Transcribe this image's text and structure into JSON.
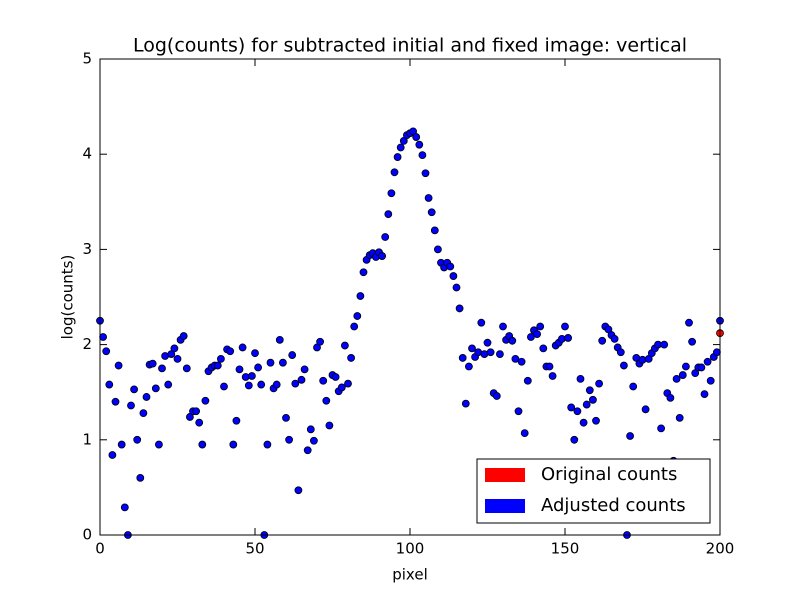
{
  "chart_data": {
    "type": "scatter",
    "title": "Log(counts) for subtracted initial and fixed image: vertical",
    "x_label": "pixel",
    "y_label": "log(counts)",
    "xlim": [
      0,
      200
    ],
    "xticks": [
      0,
      50,
      100,
      150,
      200
    ],
    "ylim": [
      0,
      5
    ],
    "yticks": [
      0,
      1,
      2,
      3,
      4,
      5
    ],
    "legend": "lower right",
    "series": [
      {
        "name": "Original counts",
        "color": "#ff0000",
        "x": [
          200
        ],
        "values": [
          2.12
        ]
      },
      {
        "name": "Adjusted counts",
        "color": "#0000ff",
        "x": [
          0,
          1,
          2,
          3,
          4,
          5,
          6,
          7,
          8,
          9,
          10,
          11,
          12,
          13,
          14,
          15,
          16,
          17,
          18,
          19,
          20,
          21,
          22,
          23,
          24,
          25,
          26,
          27,
          28,
          29,
          30,
          31,
          32,
          33,
          34,
          35,
          36,
          37,
          38,
          39,
          40,
          41,
          42,
          43,
          44,
          45,
          46,
          47,
          48,
          49,
          50,
          51,
          52,
          53,
          54,
          55,
          56,
          57,
          58,
          59,
          60,
          61,
          62,
          63,
          64,
          65,
          66,
          67,
          68,
          69,
          70,
          71,
          72,
          73,
          74,
          75,
          76,
          77,
          78,
          79,
          80,
          81,
          82,
          83,
          84,
          85,
          86,
          87,
          88,
          89,
          90,
          91,
          92,
          93,
          94,
          95,
          96,
          97,
          98,
          99,
          100,
          101,
          102,
          103,
          104,
          105,
          106,
          107,
          108,
          109,
          110,
          111,
          112,
          113,
          114,
          115,
          116,
          117,
          118,
          119,
          120,
          121,
          122,
          123,
          124,
          125,
          126,
          127,
          128,
          129,
          130,
          131,
          132,
          133,
          134,
          135,
          136,
          137,
          138,
          139,
          140,
          141,
          142,
          143,
          144,
          145,
          146,
          147,
          148,
          149,
          150,
          151,
          152,
          153,
          154,
          155,
          156,
          157,
          158,
          159,
          160,
          161,
          162,
          163,
          164,
          165,
          166,
          167,
          168,
          169,
          170,
          171,
          172,
          173,
          174,
          175,
          176,
          177,
          178,
          179,
          180,
          181,
          182,
          183,
          184,
          185,
          186,
          187,
          188,
          189,
          190,
          191,
          192,
          193,
          194,
          195,
          196,
          197,
          198,
          199,
          200
        ],
        "values": [
          2.25,
          2.08,
          1.93,
          1.58,
          0.84,
          1.4,
          1.78,
          0.95,
          0.29,
          0.0,
          1.36,
          1.53,
          1.0,
          0.6,
          1.28,
          1.45,
          1.79,
          1.8,
          1.54,
          0.95,
          1.75,
          1.88,
          1.58,
          1.9,
          1.96,
          1.85,
          2.05,
          2.09,
          1.75,
          1.24,
          1.3,
          1.3,
          1.18,
          0.95,
          1.41,
          1.72,
          1.76,
          1.78,
          1.78,
          1.85,
          1.56,
          1.95,
          1.93,
          0.95,
          1.2,
          1.74,
          1.97,
          1.66,
          1.57,
          1.67,
          1.91,
          1.76,
          1.58,
          0.0,
          0.95,
          1.81,
          1.54,
          1.58,
          2.05,
          1.81,
          1.23,
          1.0,
          1.89,
          1.59,
          0.47,
          1.63,
          1.74,
          0.89,
          1.11,
          0.99,
          1.97,
          2.03,
          1.62,
          1.41,
          1.15,
          1.68,
          1.66,
          1.51,
          1.55,
          1.99,
          1.59,
          1.86,
          2.19,
          2.3,
          2.51,
          2.76,
          2.89,
          2.94,
          2.96,
          2.92,
          2.97,
          2.93,
          3.13,
          3.37,
          3.59,
          3.81,
          3.97,
          4.07,
          4.14,
          4.2,
          4.22,
          4.24,
          4.18,
          4.1,
          3.99,
          3.8,
          3.54,
          3.39,
          3.2,
          3.0,
          2.86,
          2.81,
          2.86,
          2.82,
          2.72,
          2.6,
          2.38,
          1.86,
          1.38,
          1.77,
          1.96,
          1.87,
          1.92,
          2.23,
          1.9,
          2.02,
          1.92,
          1.49,
          1.46,
          1.9,
          2.19,
          2.05,
          2.09,
          2.04,
          1.85,
          1.3,
          1.82,
          1.07,
          1.62,
          2.08,
          2.15,
          2.11,
          2.19,
          1.96,
          1.77,
          1.77,
          1.67,
          1.99,
          2.02,
          2.06,
          2.19,
          2.07,
          1.34,
          1.0,
          1.3,
          1.64,
          1.18,
          1.37,
          1.52,
          1.42,
          1.2,
          1.59,
          2.04,
          2.19,
          2.16,
          2.1,
          2.06,
          1.97,
          1.92,
          1.78,
          0.0,
          1.04,
          1.56,
          1.86,
          1.8,
          1.84,
          1.32,
          1.85,
          1.91,
          1.96,
          2.0,
          1.12,
          2.0,
          1.49,
          1.44,
          0.78,
          1.64,
          1.23,
          1.68,
          1.77,
          2.23,
          2.03,
          1.7,
          1.76,
          1.76,
          1.48,
          1.82,
          1.62,
          1.87,
          1.92,
          2.25
        ]
      }
    ]
  }
}
